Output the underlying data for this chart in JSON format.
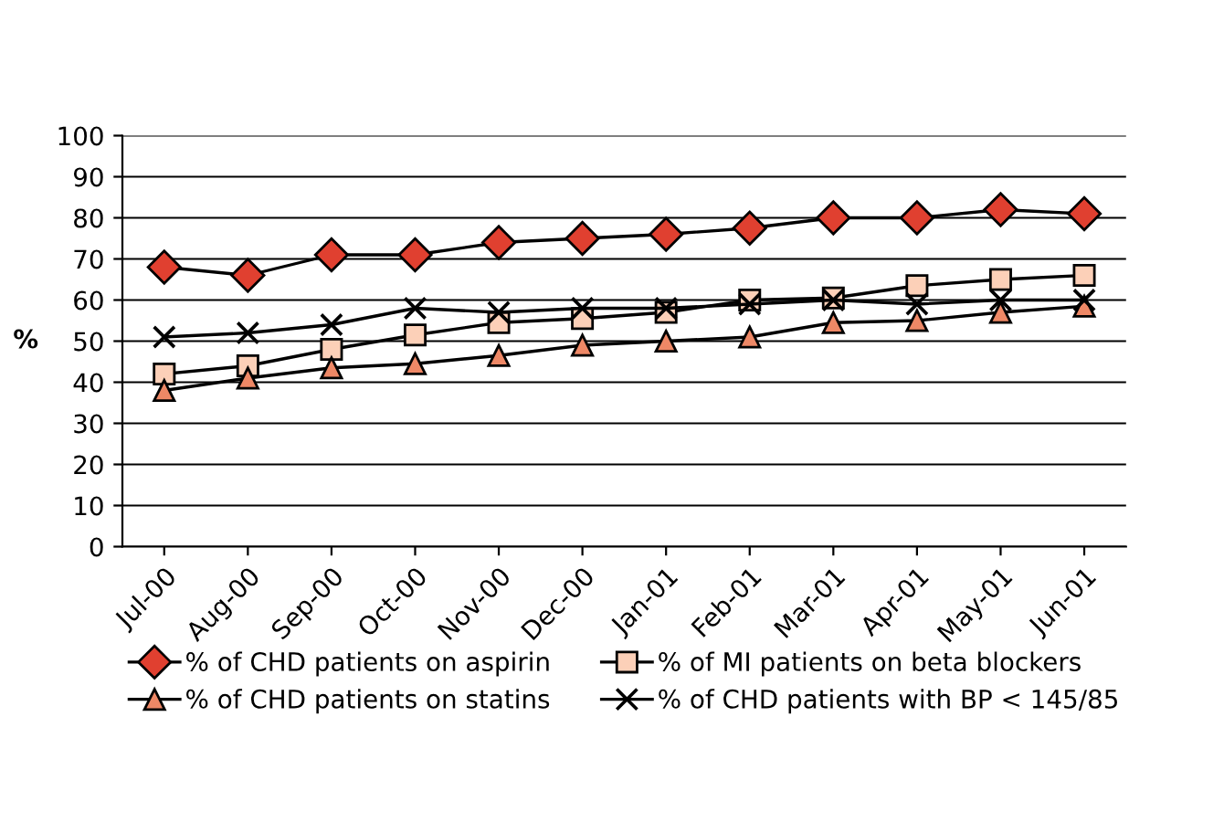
{
  "chart_data": {
    "type": "line",
    "ylabel": "%",
    "categories": [
      "Jul-00",
      "Aug-00",
      "Sep-00",
      "Oct-00",
      "Nov-00",
      "Dec-00",
      "Jan-01",
      "Feb-01",
      "Mar-01",
      "Apr-01",
      "May-01",
      "Jun-01"
    ],
    "series": [
      {
        "name": "% of CHD patients on aspirin",
        "color": "#e04030",
        "marker": "diamond",
        "values": [
          68,
          66,
          71,
          71,
          74,
          75,
          76,
          77.5,
          80,
          80,
          82,
          81
        ]
      },
      {
        "name": "% of MI patients on beta blockers",
        "color": "#fcd0b8",
        "marker": "square",
        "values": [
          42,
          44,
          48,
          51.5,
          54.5,
          55.5,
          57,
          60,
          60.5,
          63.5,
          65,
          66
        ]
      },
      {
        "name": "% of CHD patients on statins",
        "color": "#ee8866",
        "marker": "triangle",
        "values": [
          38,
          41,
          43.5,
          44.5,
          46.5,
          49,
          50,
          51,
          54.5,
          55,
          57,
          58.5
        ]
      },
      {
        "name": "% of CHD patients with BP < 145/85",
        "color": "#000000",
        "marker": "cross",
        "values": [
          51,
          52,
          54,
          58,
          57,
          58,
          58,
          59,
          60,
          59,
          60,
          60
        ]
      }
    ],
    "ylim": [
      0,
      100
    ],
    "yticks": [
      0,
      10,
      20,
      30,
      40,
      50,
      60,
      70,
      80,
      90,
      100
    ],
    "grid": "y",
    "legend": "bottom",
    "line_style": "solid"
  }
}
